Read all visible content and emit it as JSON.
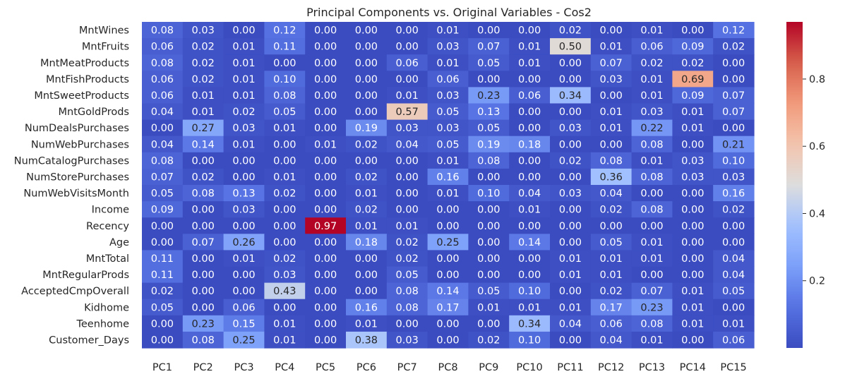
{
  "chart_data": {
    "type": "heatmap",
    "title": "Principal Components vs. Original Variables - Cos2",
    "xlabel": "",
    "ylabel": "",
    "x_categories": [
      "PC1",
      "PC2",
      "PC3",
      "PC4",
      "PC5",
      "PC6",
      "PC7",
      "PC8",
      "PC9",
      "PC10",
      "PC11",
      "PC12",
      "PC13",
      "PC14",
      "PC15"
    ],
    "y_categories": [
      "MntWines",
      "MntFruits",
      "MntMeatProducts",
      "MntFishProducts",
      "MntSweetProducts",
      "MntGoldProds",
      "NumDealsPurchases",
      "NumWebPurchases",
      "NumCatalogPurchases",
      "NumStorePurchases",
      "NumWebVisitsMonth",
      "Income",
      "Recency",
      "Age",
      "MntTotal",
      "MntRegularProds",
      "AcceptedCmpOverall",
      "Kidhome",
      "Teenhome",
      "Customer_Days"
    ],
    "values": [
      [
        0.08,
        0.03,
        0.0,
        0.12,
        0.0,
        0.0,
        0.0,
        0.01,
        0.0,
        0.0,
        0.02,
        0.0,
        0.01,
        0.0,
        0.12
      ],
      [
        0.06,
        0.02,
        0.01,
        0.11,
        0.0,
        0.0,
        0.0,
        0.03,
        0.07,
        0.01,
        0.5,
        0.01,
        0.06,
        0.09,
        0.02
      ],
      [
        0.08,
        0.02,
        0.01,
        0.0,
        0.0,
        0.0,
        0.06,
        0.01,
        0.05,
        0.01,
        0.0,
        0.07,
        0.02,
        0.02,
        0.0
      ],
      [
        0.06,
        0.02,
        0.01,
        0.1,
        0.0,
        0.0,
        0.0,
        0.06,
        0.0,
        0.0,
        0.0,
        0.03,
        0.01,
        0.69,
        0.0
      ],
      [
        0.06,
        0.01,
        0.01,
        0.08,
        0.0,
        0.0,
        0.01,
        0.03,
        0.23,
        0.06,
        0.34,
        0.0,
        0.01,
        0.09,
        0.07
      ],
      [
        0.04,
        0.01,
        0.02,
        0.05,
        0.0,
        0.0,
        0.57,
        0.05,
        0.13,
        0.0,
        0.0,
        0.01,
        0.03,
        0.01,
        0.07
      ],
      [
        0.0,
        0.27,
        0.03,
        0.01,
        0.0,
        0.19,
        0.03,
        0.03,
        0.05,
        0.0,
        0.03,
        0.01,
        0.22,
        0.01,
        0.0
      ],
      [
        0.04,
        0.14,
        0.01,
        0.0,
        0.01,
        0.02,
        0.04,
        0.05,
        0.19,
        0.18,
        0.0,
        0.0,
        0.08,
        0.0,
        0.21
      ],
      [
        0.08,
        0.0,
        0.0,
        0.0,
        0.0,
        0.0,
        0.0,
        0.01,
        0.08,
        0.0,
        0.02,
        0.08,
        0.01,
        0.03,
        0.1
      ],
      [
        0.07,
        0.02,
        0.0,
        0.01,
        0.0,
        0.02,
        0.0,
        0.16,
        0.0,
        0.0,
        0.0,
        0.36,
        0.08,
        0.03,
        0.03
      ],
      [
        0.05,
        0.08,
        0.13,
        0.02,
        0.0,
        0.01,
        0.0,
        0.01,
        0.1,
        0.04,
        0.03,
        0.04,
        0.0,
        0.0,
        0.16
      ],
      [
        0.09,
        0.0,
        0.03,
        0.0,
        0.0,
        0.02,
        0.0,
        0.0,
        0.0,
        0.01,
        0.0,
        0.02,
        0.08,
        0.0,
        0.02
      ],
      [
        0.0,
        0.0,
        0.0,
        0.0,
        0.97,
        0.01,
        0.01,
        0.0,
        0.0,
        0.0,
        0.0,
        0.0,
        0.0,
        0.0,
        0.0
      ],
      [
        0.0,
        0.07,
        0.26,
        0.0,
        0.0,
        0.18,
        0.02,
        0.25,
        0.0,
        0.14,
        0.0,
        0.05,
        0.01,
        0.0,
        0.0
      ],
      [
        0.11,
        0.0,
        0.01,
        0.02,
        0.0,
        0.0,
        0.02,
        0.0,
        0.0,
        0.0,
        0.01,
        0.01,
        0.01,
        0.0,
        0.04
      ],
      [
        0.11,
        0.0,
        0.0,
        0.03,
        0.0,
        0.0,
        0.05,
        0.0,
        0.0,
        0.0,
        0.01,
        0.01,
        0.0,
        0.0,
        0.04
      ],
      [
        0.02,
        0.0,
        0.0,
        0.43,
        0.0,
        0.0,
        0.08,
        0.14,
        0.05,
        0.1,
        0.0,
        0.02,
        0.07,
        0.01,
        0.05
      ],
      [
        0.05,
        0.0,
        0.06,
        0.0,
        0.0,
        0.16,
        0.08,
        0.17,
        0.01,
        0.01,
        0.01,
        0.17,
        0.23,
        0.01,
        0.0
      ],
      [
        0.0,
        0.23,
        0.15,
        0.01,
        0.0,
        0.01,
        0.0,
        0.0,
        0.0,
        0.34,
        0.04,
        0.06,
        0.08,
        0.01,
        0.01
      ],
      [
        0.0,
        0.08,
        0.25,
        0.01,
        0.0,
        0.38,
        0.03,
        0.0,
        0.02,
        0.1,
        0.0,
        0.04,
        0.01,
        0.0,
        0.06
      ]
    ],
    "colormap": "coolwarm",
    "value_range": [
      0.0,
      0.97
    ],
    "colorbar_ticks": [
      0.2,
      0.4,
      0.6,
      0.8
    ],
    "annotation_format": "0.00",
    "grid": false,
    "legend": "colorbar-right"
  }
}
